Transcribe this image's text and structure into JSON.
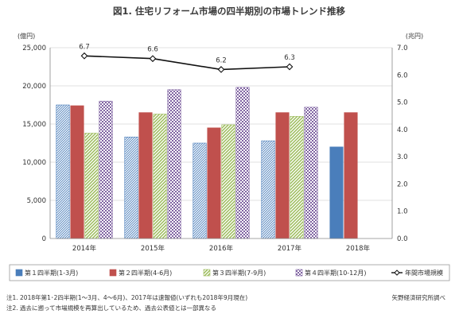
{
  "chart_data": {
    "type": "bar",
    "title": "図1. 住宅リフォーム市場の四半期別の市場トレンド推移",
    "y_left_unit": "(億円)",
    "y_right_unit": "(兆円)",
    "ylim_left": [
      0,
      25000
    ],
    "ylim_right": [
      0.0,
      7.0
    ],
    "y_left_ticks": [
      "0",
      "5,000",
      "10,000",
      "15,000",
      "20,000",
      "25,000"
    ],
    "y_right_ticks": [
      "0.0",
      "1.0",
      "2.0",
      "3.0",
      "4.0",
      "5.0",
      "6.0",
      "7.0"
    ],
    "categories": [
      "2014年",
      "2015年",
      "2016年",
      "2017年",
      "2018年"
    ],
    "grid": true,
    "legend_position": "bottom",
    "series": [
      {
        "name": "第１四半期(1-3月)",
        "color": "#4a7ebb",
        "pattern": "dense-diagonal",
        "values": [
          17500,
          13300,
          12500,
          12800,
          12000
        ]
      },
      {
        "name": "第２四半期(4-6月)",
        "color": "#c0504d",
        "pattern": "solid",
        "values": [
          17400,
          16500,
          14500,
          16500,
          16500
        ]
      },
      {
        "name": "第３四半期(7-9月)",
        "color": "#9bbb59",
        "pattern": "wide-diagonal",
        "values": [
          13800,
          16300,
          14900,
          16000,
          null
        ]
      },
      {
        "name": "第４四半期(10-12月)",
        "color": "#8064a2",
        "pattern": "checker",
        "values": [
          18000,
          19500,
          19800,
          17200,
          null
        ]
      }
    ],
    "line_series": {
      "name": "年間市場規模",
      "color": "#111111",
      "values": [
        6.7,
        6.6,
        6.2,
        6.3,
        null
      ],
      "labels": [
        "6.7",
        "6.6",
        "6.2",
        "6.3",
        ""
      ]
    }
  },
  "notes": [
    "注1. 2018年第1･2四半期(1～3月、4～6月)、2017年は速報値(いずれも2018年9月現在)",
    "注2. 過去に遡って市場規模を再算出しているため、過去公表値とは一部異なる"
  ],
  "source": "矢野経済研究所調べ"
}
